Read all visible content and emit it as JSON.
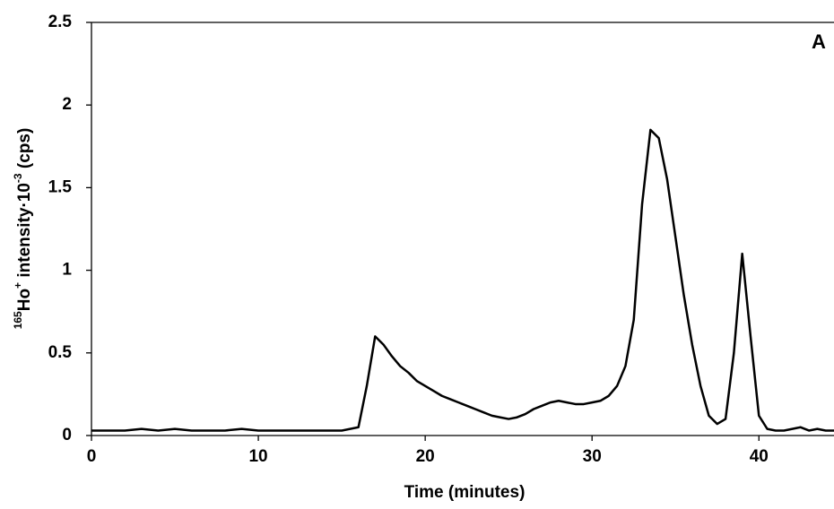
{
  "chart_data": {
    "type": "line",
    "xlabel": "Time (minutes)",
    "ylabel": [
      {
        "text": "165",
        "sup": true
      },
      {
        "text": "Ho",
        "sup": false
      },
      {
        "text": "+",
        "sup": true
      },
      {
        "text": " intensity·10",
        "sup": false
      },
      {
        "text": "-3",
        "sup": true
      },
      {
        "text": " (cps)",
        "sup": false
      }
    ],
    "annotation": "A",
    "xlim": [
      0,
      44.5
    ],
    "ylim": [
      0,
      2.5
    ],
    "xticks": [
      0,
      10,
      20,
      30,
      40
    ],
    "yticks": [
      0,
      0.5,
      1,
      1.5,
      2,
      2.5
    ],
    "grid": false,
    "x": [
      0,
      1,
      2,
      3,
      4,
      5,
      6,
      7,
      8,
      9,
      10,
      11,
      12,
      13,
      14,
      15,
      16,
      16.5,
      17,
      17.5,
      18,
      18.5,
      19,
      19.5,
      20,
      20.5,
      21,
      21.5,
      22,
      22.5,
      23,
      23.5,
      24,
      24.5,
      25,
      25.5,
      26,
      26.5,
      27,
      27.5,
      28,
      28.5,
      29,
      29.5,
      30,
      30.5,
      31,
      31.5,
      32,
      32.5,
      33,
      33.5,
      34,
      34.5,
      35,
      35.5,
      36,
      36.5,
      37,
      37.5,
      38,
      38.5,
      39,
      39.5,
      40,
      40.5,
      41,
      41.5,
      42,
      42.5,
      43,
      43.5,
      44,
      44.5
    ],
    "series": [
      {
        "name": "165Ho+",
        "color": "#000000",
        "values": [
          0.03,
          0.03,
          0.03,
          0.04,
          0.03,
          0.04,
          0.03,
          0.03,
          0.03,
          0.04,
          0.03,
          0.03,
          0.03,
          0.03,
          0.03,
          0.03,
          0.05,
          0.3,
          0.6,
          0.55,
          0.48,
          0.42,
          0.38,
          0.33,
          0.3,
          0.27,
          0.24,
          0.22,
          0.2,
          0.18,
          0.16,
          0.14,
          0.12,
          0.11,
          0.1,
          0.11,
          0.13,
          0.16,
          0.18,
          0.2,
          0.21,
          0.2,
          0.19,
          0.19,
          0.2,
          0.21,
          0.24,
          0.3,
          0.42,
          0.7,
          1.4,
          1.85,
          1.8,
          1.55,
          1.2,
          0.85,
          0.55,
          0.3,
          0.12,
          0.07,
          0.1,
          0.5,
          1.1,
          0.6,
          0.12,
          0.04,
          0.03,
          0.03,
          0.04,
          0.05,
          0.03,
          0.04,
          0.03,
          0.03
        ]
      }
    ]
  }
}
